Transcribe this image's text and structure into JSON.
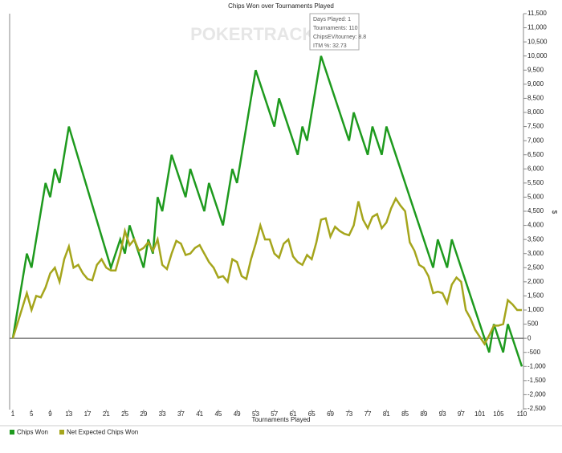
{
  "chart_data": {
    "type": "line",
    "title": "Chips Won over Tournaments Played",
    "x_label": "Tournaments Played",
    "y_label": "$",
    "watermark": "POKERTRACKER",
    "annotations": [
      "Days Played: 1",
      "Tournaments: 110",
      "ChipsEV/tourney: 8.8",
      "ITM %: 32.73"
    ],
    "xlim": [
      1,
      110
    ],
    "xticks": [
      1,
      5,
      9,
      13,
      17,
      21,
      25,
      29,
      33,
      37,
      41,
      45,
      49,
      53,
      57,
      61,
      65,
      69,
      73,
      77,
      81,
      85,
      89,
      93,
      97,
      101,
      105,
      110
    ],
    "ylim": [
      -2500,
      11500
    ],
    "yticks": [
      {
        "value": -2500,
        "label": "-2,500"
      },
      {
        "value": -2000,
        "label": "-2,000"
      },
      {
        "value": -1500,
        "label": "-1,500"
      },
      {
        "value": -1000,
        "label": "-1,000"
      },
      -500,
      0,
      500,
      {
        "value": 1000,
        "label": "1,000"
      },
      {
        "value": 1500,
        "label": "1,500"
      },
      {
        "value": 2000,
        "label": "2,000"
      },
      {
        "value": 2500,
        "label": "2,500"
      },
      {
        "value": 3000,
        "label": "3,000"
      },
      {
        "value": 3500,
        "label": "3,500"
      },
      {
        "value": 4000,
        "label": "4,000"
      },
      {
        "value": 4500,
        "label": "4,500"
      },
      {
        "value": 5000,
        "label": "5,000"
      },
      {
        "value": 5500,
        "label": "5,500"
      },
      {
        "value": 6000,
        "label": "6,000"
      },
      {
        "value": 6500,
        "label": "6,500"
      },
      {
        "value": 7000,
        "label": "7,000"
      },
      {
        "value": 7500,
        "label": "7,500"
      },
      {
        "value": 8000,
        "label": "8,000"
      },
      {
        "value": 8500,
        "label": "8,500"
      },
      {
        "value": 9000,
        "label": "9,000"
      },
      {
        "value": 9500,
        "label": "9,500"
      },
      {
        "value": 10000,
        "label": "10,000"
      },
      {
        "value": 10500,
        "label": "10,500"
      },
      {
        "value": 11000,
        "label": "11,000"
      },
      {
        "value": 11500,
        "label": "11,500"
      }
    ],
    "series": [
      {
        "name": "Chips Won",
        "color": "#1e9a1e",
        "x": [
          1,
          4,
          5,
          8,
          9,
          10,
          11,
          13,
          22,
          24,
          25,
          26,
          29,
          30,
          31,
          32,
          33,
          35,
          38,
          39,
          42,
          43,
          46,
          48,
          49,
          53,
          57,
          58,
          62,
          63,
          64,
          67,
          73,
          74,
          77,
          78,
          80,
          81,
          91,
          92,
          94,
          95,
          103,
          104,
          106,
          107,
          110
        ],
        "values": [
          0,
          3000,
          2500,
          5500,
          5000,
          6000,
          5500,
          7500,
          2500,
          3500,
          3000,
          4000,
          2500,
          3500,
          3000,
          5000,
          4500,
          6500,
          5000,
          6000,
          4500,
          5500,
          4000,
          6000,
          5500,
          9500,
          7500,
          8500,
          6500,
          7500,
          7000,
          10000,
          7000,
          8000,
          6500,
          7500,
          6500,
          7500,
          2500,
          3500,
          2500,
          3500,
          -500,
          500,
          -500,
          500,
          -1000
        ]
      },
      {
        "name": "Net Expected Chips Won",
        "color": "#a5a51c",
        "x": [
          1,
          4,
          5,
          6,
          7,
          8,
          9,
          10,
          11,
          12,
          13,
          14,
          15,
          16,
          17,
          18,
          19,
          20,
          21,
          22,
          23,
          24,
          25,
          26,
          27,
          28,
          29,
          30,
          31,
          32,
          33,
          34,
          35,
          36,
          37,
          38,
          39,
          40,
          41,
          42,
          43,
          44,
          45,
          46,
          47,
          48,
          49,
          50,
          51,
          52,
          53,
          54,
          55,
          56,
          57,
          58,
          59,
          60,
          61,
          62,
          63,
          64,
          65,
          66,
          67,
          68,
          69,
          70,
          71,
          72,
          73,
          74,
          75,
          76,
          77,
          78,
          79,
          80,
          81,
          82,
          83,
          84,
          85,
          86,
          87,
          88,
          89,
          90,
          91,
          92,
          93,
          94,
          95,
          96,
          97,
          98,
          99,
          100,
          101,
          102,
          103,
          104,
          105,
          106,
          107,
          108,
          109,
          110
        ],
        "values": [
          0,
          1600,
          1000,
          1500,
          1450,
          1800,
          2300,
          2500,
          2000,
          2800,
          3250,
          2500,
          2600,
          2300,
          2100,
          2050,
          2600,
          2800,
          2500,
          2400,
          2400,
          3000,
          3800,
          3300,
          3500,
          3100,
          3200,
          3400,
          3100,
          3500,
          2600,
          2450,
          3000,
          3450,
          3350,
          2950,
          3000,
          3200,
          3300,
          3000,
          2700,
          2500,
          2150,
          2200,
          2000,
          2800,
          2700,
          2200,
          2100,
          2800,
          3350,
          4000,
          3500,
          3500,
          3000,
          2850,
          3350,
          3500,
          2900,
          2700,
          2600,
          2950,
          2800,
          3400,
          4200,
          4250,
          3600,
          3950,
          3800,
          3700,
          3650,
          4000,
          4850,
          4200,
          3900,
          4300,
          4400,
          3900,
          4100,
          4600,
          4950,
          4700,
          4500,
          3400,
          3100,
          2600,
          2500,
          2200,
          1600,
          1650,
          1600,
          1250,
          1900,
          2150,
          2000,
          1000,
          700,
          300,
          50,
          -200,
          100,
          450,
          450,
          500,
          1350,
          1200,
          1000,
          1000
        ]
      }
    ]
  }
}
